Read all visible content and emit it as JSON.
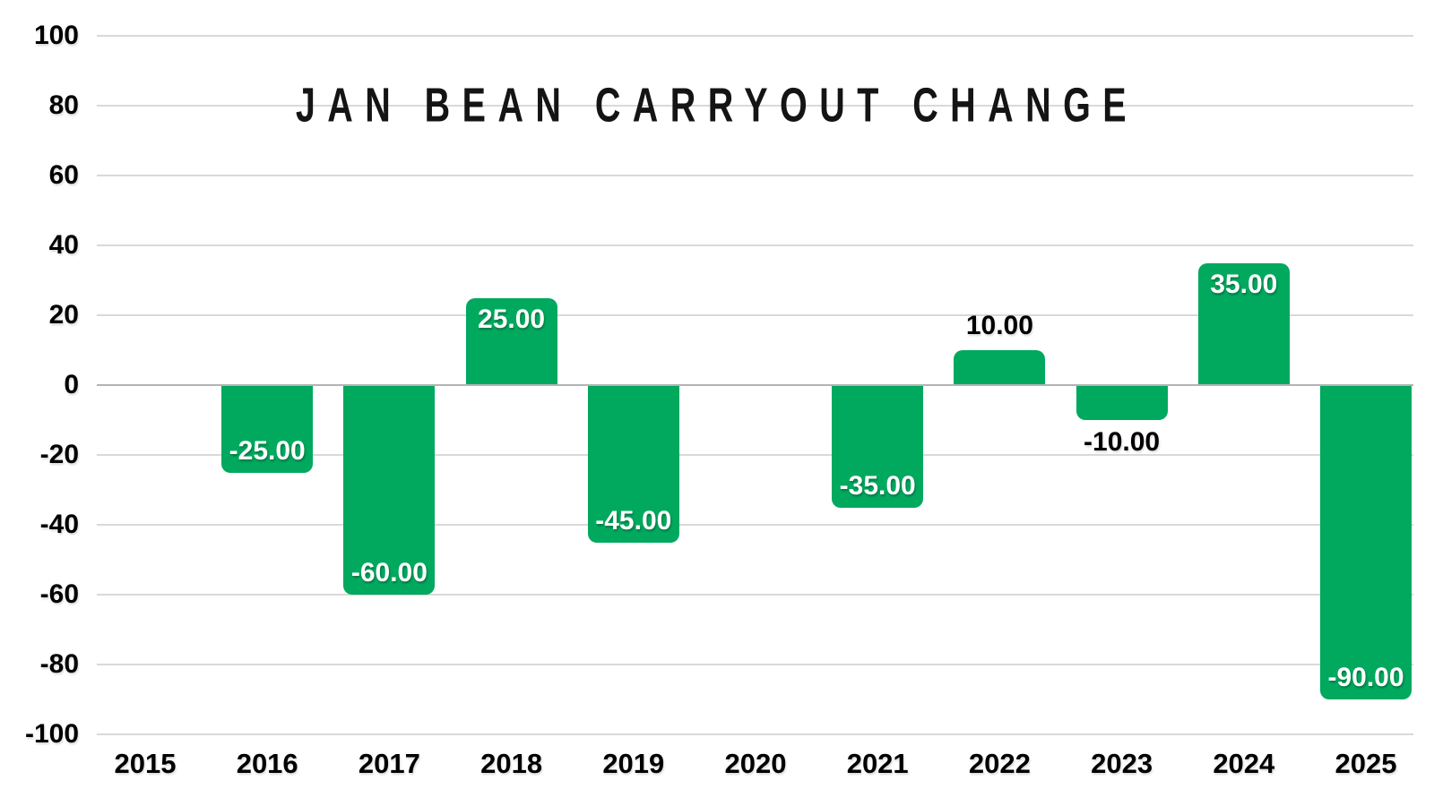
{
  "chart_data": {
    "type": "bar",
    "title": "JAN BEAN CARRYOUT CHANGE",
    "categories": [
      "2015",
      "2016",
      "2017",
      "2018",
      "2019",
      "2020",
      "2021",
      "2022",
      "2023",
      "2024",
      "2025"
    ],
    "values": [
      0,
      -25,
      -60,
      25,
      -45,
      0,
      -35,
      10,
      -10,
      35,
      -90
    ],
    "bar_labels": [
      "",
      "-25.00",
      "-60.00",
      "25.00",
      "-45.00",
      "",
      "-35.00",
      "10.00",
      "-10.00",
      "35.00",
      "-90.00"
    ],
    "xlabel": "",
    "ylabel": "",
    "ylim": [
      -100,
      100
    ],
    "y_ticks": [
      100,
      80,
      60,
      40,
      20,
      0,
      -20,
      -40,
      -60,
      -80,
      -100
    ],
    "grid": true,
    "legend_position": "none",
    "bar_color": "#00a95e",
    "label_inside_color": "#ffffff",
    "label_outside_color": "#000000",
    "gridline_color": "#d9d9d9",
    "zero_line_color": "#b3b3b3",
    "background_color": "#ffffff"
  }
}
